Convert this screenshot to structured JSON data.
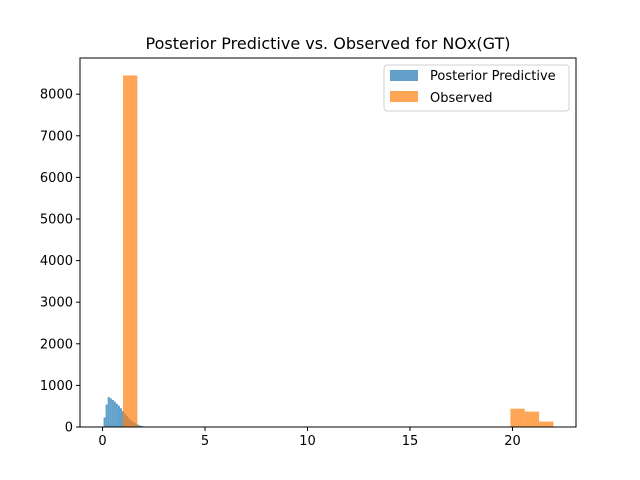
{
  "chart_data": {
    "type": "bar",
    "title": "Posterior Predictive vs. Observed for NOx(GT)",
    "xlabel": "",
    "ylabel": "",
    "xlim": [
      -1.1,
      23.1
    ],
    "ylim": [
      0,
      8870
    ],
    "xticks": [
      0,
      5,
      10,
      15,
      20
    ],
    "yticks": [
      0,
      1000,
      2000,
      3000,
      4000,
      5000,
      6000,
      7000,
      8000
    ],
    "grid": false,
    "legend": "top-right",
    "series": [
      {
        "name": "Posterior Predictive",
        "color": "#1f77b4",
        "opacity": 0.7,
        "bins": [
          {
            "x0": 0.05,
            "x1": 0.15,
            "value": 230
          },
          {
            "x0": 0.15,
            "x1": 0.25,
            "value": 540
          },
          {
            "x0": 0.25,
            "x1": 0.35,
            "value": 720
          },
          {
            "x0": 0.35,
            "x1": 0.45,
            "value": 690
          },
          {
            "x0": 0.45,
            "x1": 0.55,
            "value": 650
          },
          {
            "x0": 0.55,
            "x1": 0.65,
            "value": 610
          },
          {
            "x0": 0.65,
            "x1": 0.75,
            "value": 560
          },
          {
            "x0": 0.75,
            "x1": 0.85,
            "value": 510
          },
          {
            "x0": 0.85,
            "x1": 0.95,
            "value": 450
          },
          {
            "x0": 0.95,
            "x1": 1.05,
            "value": 380
          },
          {
            "x0": 1.05,
            "x1": 1.15,
            "value": 320
          },
          {
            "x0": 1.15,
            "x1": 1.25,
            "value": 260
          },
          {
            "x0": 1.25,
            "x1": 1.35,
            "value": 210
          },
          {
            "x0": 1.35,
            "x1": 1.45,
            "value": 160
          },
          {
            "x0": 1.45,
            "x1": 1.55,
            "value": 120
          },
          {
            "x0": 1.55,
            "x1": 1.65,
            "value": 90
          },
          {
            "x0": 1.65,
            "x1": 1.75,
            "value": 60
          },
          {
            "x0": 1.75,
            "x1": 1.85,
            "value": 40
          },
          {
            "x0": 1.85,
            "x1": 1.95,
            "value": 25
          },
          {
            "x0": 1.95,
            "x1": 2.05,
            "value": 15
          },
          {
            "x0": 2.05,
            "x1": 2.2,
            "value": 8
          }
        ]
      },
      {
        "name": "Observed",
        "color": "#ff7f0e",
        "opacity": 0.7,
        "bins": [
          {
            "x0": 1.0,
            "x1": 1.7,
            "value": 8450
          },
          {
            "x0": 19.9,
            "x1": 20.6,
            "value": 440
          },
          {
            "x0": 20.6,
            "x1": 21.3,
            "value": 370
          },
          {
            "x0": 21.3,
            "x1": 22.0,
            "value": 130
          }
        ]
      }
    ]
  }
}
